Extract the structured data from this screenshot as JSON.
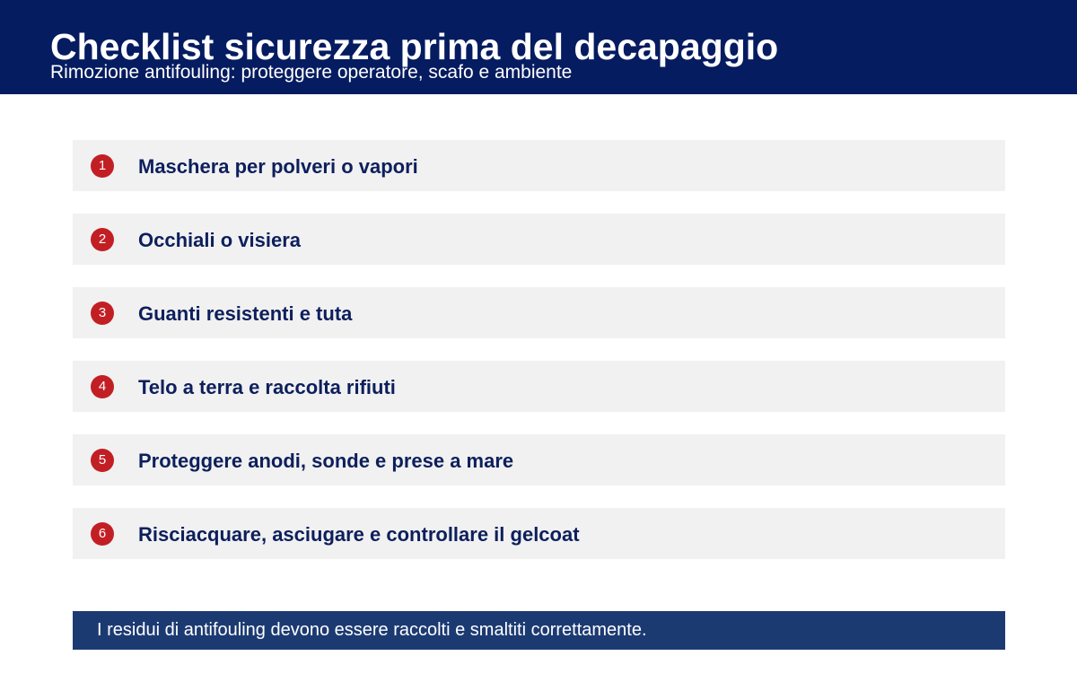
{
  "header": {
    "title": "Checklist sicurezza prima del decapaggio",
    "subtitle": "Rimozione antifouling: proteggere operatore, scafo e ambiente",
    "background_color": "#061c60"
  },
  "checklist": {
    "badge_color": "#c21f25",
    "items": [
      {
        "number": "1",
        "label": "Maschera per polveri o vapori"
      },
      {
        "number": "2",
        "label": "Occhiali o visiera"
      },
      {
        "number": "3",
        "label": "Guanti resistenti e tuta"
      },
      {
        "number": "4",
        "label": "Telo a terra e raccolta rifiuti"
      },
      {
        "number": "5",
        "label": "Proteggere anodi, sonde e prese a mare"
      },
      {
        "number": "6",
        "label": "Risciacquare, asciugare e controllare il gelcoat"
      }
    ]
  },
  "footer_note": {
    "text": "I residui di antifouling devono essere raccolti e smaltiti correttamente.",
    "background_color": "#1c3a72"
  }
}
